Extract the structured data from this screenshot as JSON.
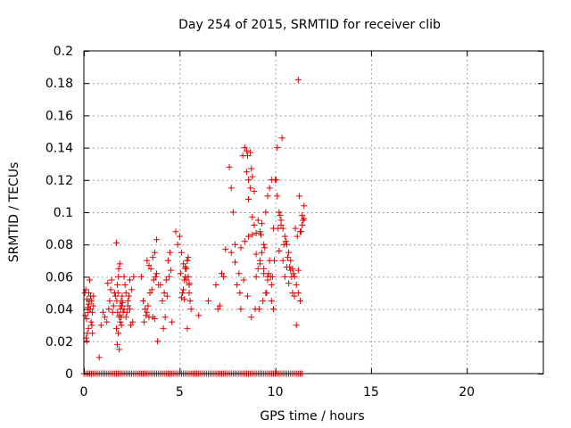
{
  "chart_data": {
    "type": "scatter",
    "title": "Day 254 of 2015, SRMTID for receiver clib",
    "xlabel": "GPS time / hours",
    "ylabel": "SRMTID / TECUs",
    "xlim": [
      0,
      24
    ],
    "ylim": [
      0,
      0.2
    ],
    "xticks": [
      0,
      5,
      10,
      15,
      20
    ],
    "xtick_labels": [
      "0",
      "5",
      "10",
      "15",
      "20"
    ],
    "yticks": [
      0,
      0.02,
      0.04,
      0.06,
      0.08,
      0.1,
      0.12,
      0.14,
      0.16,
      0.18,
      0.2
    ],
    "ytick_labels": [
      "0",
      "0.02",
      "0.04",
      "0.06",
      "0.08",
      "0.1",
      "0.12",
      "0.14",
      "0.16",
      "0.18",
      "0.2"
    ],
    "grid": true,
    "legend": "none",
    "marker": "plus",
    "colors": {
      "points": "#e00000",
      "grid": "#a0a0a0",
      "axis": "#000000"
    },
    "series": [
      {
        "x": [
          0.05,
          0.1,
          0.12,
          0.15,
          0.18,
          0.2,
          0.22,
          0.25,
          0.28,
          0.3,
          0.32,
          0.35,
          0.38,
          0.4,
          0.42,
          0.45,
          0.48,
          0.5,
          0.08,
          0.14,
          0.24,
          0.34,
          0.44,
          0.16,
          0.26,
          0.8,
          0.9,
          1.0,
          1.1,
          1.2,
          1.25,
          1.3,
          1.35,
          1.4,
          1.45,
          1.5,
          1.55,
          1.6,
          1.65,
          1.7,
          1.75,
          1.8,
          1.85,
          1.9,
          1.95,
          2.0,
          2.05,
          2.1,
          1.7,
          1.75,
          1.8,
          1.85,
          1.9,
          1.95,
          1.72,
          1.78,
          1.82,
          1.88,
          1.92,
          1.98,
          2.02,
          1.76,
          1.86,
          1.96,
          2.1,
          2.15,
          2.2,
          2.3,
          2.4,
          2.5,
          2.6,
          2.2,
          2.35,
          2.45,
          2.55,
          2.25,
          2.3,
          2.4,
          3.0,
          3.1,
          3.2,
          3.3,
          3.4,
          3.5,
          3.6,
          3.7,
          3.8,
          3.9,
          3.15,
          3.25,
          3.35,
          3.45,
          3.55,
          3.65,
          3.75,
          3.85,
          3.3,
          3.4,
          3.6,
          3.7,
          3.8,
          4.0,
          4.1,
          4.2,
          4.3,
          4.4,
          4.5,
          4.6,
          4.15,
          4.25,
          4.35,
          4.45,
          4.55,
          4.8,
          4.9,
          5.0,
          5.05,
          5.1,
          5.15,
          5.2,
          5.25,
          5.3,
          5.35,
          5.4,
          5.45,
          5.5,
          5.55,
          5.6,
          5.1,
          5.2,
          5.3,
          5.4,
          5.5,
          5.25,
          5.35,
          5.45,
          5.3,
          5.4,
          5.5,
          6.0,
          6.5,
          6.9,
          7.0,
          7.1,
          7.2,
          7.3,
          7.4,
          7.6,
          7.7,
          7.8,
          7.9,
          8.0,
          8.1,
          8.2,
          8.3,
          8.4,
          8.5,
          8.6,
          8.7,
          8.8,
          8.9,
          9.0,
          9.1,
          9.2,
          9.3,
          9.4,
          9.5,
          9.6,
          9.7,
          9.8,
          9.9,
          7.7,
          7.9,
          8.15,
          8.35,
          8.55,
          8.75,
          8.95,
          9.15,
          9.35,
          9.55,
          9.75,
          9.95,
          8.2,
          8.4,
          8.6,
          8.8,
          9.0,
          9.2,
          9.4,
          9.6,
          9.8,
          8.5,
          8.6,
          8.7,
          8.8,
          8.9,
          9.0,
          9.1,
          9.2,
          9.3,
          9.4,
          9.5,
          9.6,
          9.7,
          9.8,
          9.9,
          8.55,
          8.75,
          9.25,
          9.45,
          9.65,
          9.85,
          10.0,
          10.1,
          10.2,
          10.3,
          10.4,
          10.5,
          10.6,
          10.7,
          10.8,
          10.9,
          11.0,
          11.1,
          11.2,
          11.3,
          11.4,
          11.5,
          10.05,
          10.15,
          10.25,
          10.35,
          10.45,
          10.55,
          10.65,
          10.75,
          10.85,
          10.95,
          11.05,
          11.15,
          11.25,
          11.35,
          11.45,
          10.1,
          10.3,
          10.5,
          10.7,
          10.9,
          11.1,
          11.3,
          11.5,
          10.2,
          10.4,
          10.6,
          10.8,
          11.0,
          11.2,
          11.4,
          11.2
        ],
        "y": [
          0.05,
          0.052,
          0.022,
          0.02,
          0.025,
          0.041,
          0.038,
          0.043,
          0.045,
          0.058,
          0.04,
          0.048,
          0.032,
          0.045,
          0.03,
          0.025,
          0.042,
          0.048,
          0.036,
          0.034,
          0.028,
          0.04,
          0.038,
          0.046,
          0.05,
          0.01,
          0.03,
          0.038,
          0.035,
          0.032,
          0.056,
          0.04,
          0.045,
          0.052,
          0.058,
          0.038,
          0.042,
          0.05,
          0.048,
          0.081,
          0.055,
          0.06,
          0.035,
          0.042,
          0.045,
          0.048,
          0.038,
          0.04,
          0.028,
          0.018,
          0.025,
          0.015,
          0.032,
          0.035,
          0.045,
          0.05,
          0.065,
          0.068,
          0.04,
          0.042,
          0.044,
          0.038,
          0.036,
          0.03,
          0.06,
          0.055,
          0.05,
          0.045,
          0.04,
          0.052,
          0.06,
          0.035,
          0.048,
          0.03,
          0.032,
          0.038,
          0.042,
          0.058,
          0.06,
          0.045,
          0.04,
          0.038,
          0.035,
          0.065,
          0.072,
          0.075,
          0.083,
          0.055,
          0.032,
          0.036,
          0.042,
          0.05,
          0.052,
          0.058,
          0.06,
          0.02,
          0.07,
          0.067,
          0.035,
          0.034,
          0.062,
          0.055,
          0.045,
          0.05,
          0.058,
          0.07,
          0.075,
          0.032,
          0.028,
          0.035,
          0.048,
          0.06,
          0.064,
          0.088,
          0.08,
          0.085,
          0.062,
          0.047,
          0.05,
          0.052,
          0.058,
          0.06,
          0.065,
          0.07,
          0.072,
          0.055,
          0.045,
          0.04,
          0.075,
          0.068,
          0.066,
          0.028,
          0.05,
          0.046,
          0.058,
          0.06,
          0.065,
          0.07,
          0.056,
          0.036,
          0.045,
          0.055,
          0.04,
          0.042,
          0.062,
          0.06,
          0.077,
          0.128,
          0.115,
          0.1,
          0.08,
          0.055,
          0.062,
          0.04,
          0.135,
          0.14,
          0.125,
          0.12,
          0.115,
          0.097,
          0.113,
          0.06,
          0.065,
          0.07,
          0.075,
          0.08,
          0.1,
          0.11,
          0.115,
          0.12,
          0.09,
          0.075,
          0.069,
          0.05,
          0.058,
          0.048,
          0.035,
          0.04,
          0.04,
          0.045,
          0.05,
          0.06,
          0.07,
          0.078,
          0.082,
          0.085,
          0.086,
          0.074,
          0.068,
          0.062,
          0.058,
          0.055,
          0.138,
          0.108,
          0.137,
          0.122,
          0.092,
          0.087,
          0.095,
          0.088,
          0.093,
          0.065,
          0.05,
          0.06,
          0.07,
          0.045,
          0.04,
          0.135,
          0.127,
          0.086,
          0.078,
          0.062,
          0.06,
          0.12,
          0.11,
          0.1,
          0.095,
          0.09,
          0.085,
          0.08,
          0.075,
          0.07,
          0.065,
          0.06,
          0.055,
          0.05,
          0.045,
          0.098,
          0.104,
          0.12,
          0.09,
          0.098,
          0.146,
          0.08,
          0.082,
          0.072,
          0.066,
          0.06,
          0.062,
          0.09,
          0.085,
          0.11,
          0.088,
          0.095,
          0.14,
          0.092,
          0.06,
          0.056,
          0.05,
          0.03,
          0.088,
          0.096,
          0.076,
          0.07,
          0.066,
          0.064,
          0.048,
          0.064,
          0.092,
          0.182
        ]
      },
      {
        "x": [
          0,
          0.1,
          0.2,
          0.3,
          0.4,
          0.5,
          0.6,
          0.7,
          0.8,
          0.9,
          1.0,
          1.1,
          1.2,
          1.3,
          1.4,
          1.5,
          1.6,
          1.7,
          1.8,
          1.9,
          2.0,
          2.1,
          2.2,
          2.3,
          2.4,
          2.5,
          2.6,
          2.7,
          2.8,
          2.9,
          3.0,
          3.1,
          3.2,
          3.3,
          3.4,
          3.5,
          3.6,
          3.7,
          3.8,
          3.9,
          4.0,
          4.1,
          4.2,
          4.3,
          4.4,
          4.5,
          4.6,
          4.7,
          4.8,
          4.9,
          5.0,
          5.1,
          5.2,
          5.3,
          5.4,
          5.5,
          5.6,
          5.7,
          5.8,
          5.9,
          6.0,
          6.1,
          6.2,
          6.3,
          6.4,
          6.5,
          6.6,
          6.7,
          6.8,
          6.9,
          7.0,
          7.1,
          7.2,
          7.3,
          7.4,
          7.5,
          7.6,
          7.7,
          7.8,
          7.9,
          8.0,
          8.1,
          8.2,
          8.3,
          8.4,
          8.5,
          8.6,
          8.7,
          8.8,
          8.9,
          9.0,
          9.1,
          9.2,
          9.3,
          9.4,
          9.5,
          9.6,
          9.7,
          9.8,
          9.9,
          10.0,
          10.1,
          10.2,
          10.3,
          10.4,
          10.5,
          10.6,
          10.7,
          10.8,
          10.9,
          11.0,
          11.1,
          11.2,
          11.3,
          11.4
        ],
        "y": [
          0,
          0,
          0,
          0,
          0,
          0,
          0,
          0,
          0,
          0,
          0,
          0,
          0,
          0,
          0,
          0,
          0,
          0,
          0,
          0,
          0,
          0,
          0,
          0,
          0,
          0,
          0,
          0,
          0,
          0,
          0,
          0,
          0,
          0,
          0,
          0,
          0,
          0,
          0,
          0,
          0,
          0,
          0,
          0,
          0,
          0,
          0,
          0,
          0,
          0,
          0,
          0,
          0,
          0,
          0,
          0,
          0,
          0,
          0,
          0,
          0,
          0,
          0,
          0,
          0,
          0,
          0,
          0,
          0,
          0,
          0,
          0,
          0,
          0,
          0,
          0,
          0,
          0,
          0,
          0,
          0,
          0,
          0,
          0,
          0,
          0,
          0,
          0,
          0,
          0,
          0,
          0,
          0,
          0,
          0,
          0,
          0,
          0,
          0,
          0,
          0,
          0,
          0,
          0,
          0,
          0,
          0,
          0,
          0,
          0,
          0,
          0,
          0,
          0,
          0
        ]
      }
    ]
  }
}
